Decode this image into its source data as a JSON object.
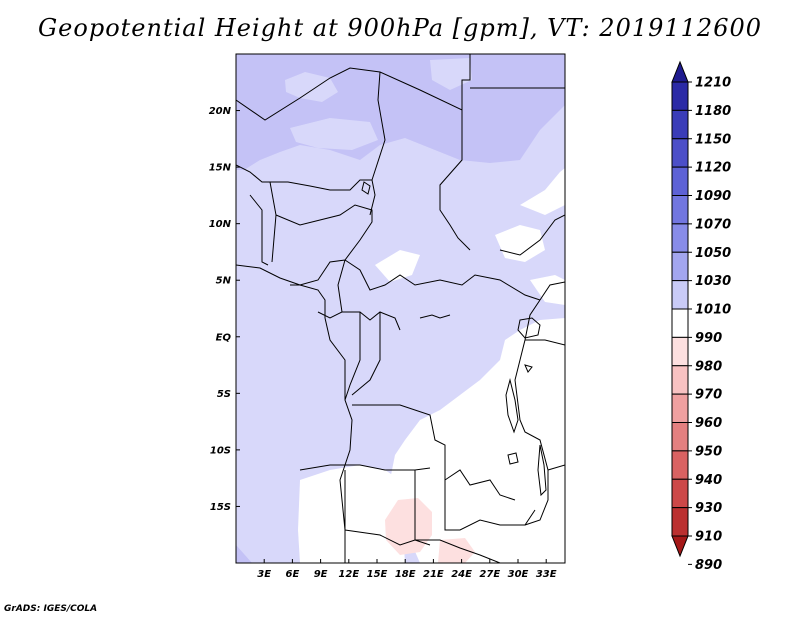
{
  "title": "Geopotential Height at 900hPa [gpm], VT: 2019112600",
  "credit": "GrADS: IGES/COLA",
  "map": {
    "lon_range": [
      0,
      35
    ],
    "lat_range": [
      -20,
      25
    ],
    "x_ticks": [
      {
        "lon": 3,
        "label": "3E"
      },
      {
        "lon": 6,
        "label": "6E"
      },
      {
        "lon": 9,
        "label": "9E"
      },
      {
        "lon": 12,
        "label": "12E"
      },
      {
        "lon": 15,
        "label": "15E"
      },
      {
        "lon": 18,
        "label": "18E"
      },
      {
        "lon": 21,
        "label": "21E"
      },
      {
        "lon": 24,
        "label": "24E"
      },
      {
        "lon": 27,
        "label": "27E"
      },
      {
        "lon": 30,
        "label": "30E"
      },
      {
        "lon": 33,
        "label": "33E"
      }
    ],
    "y_ticks": [
      {
        "lat": 20,
        "label": "20N"
      },
      {
        "lat": 15,
        "label": "15N"
      },
      {
        "lat": 10,
        "label": "10N"
      },
      {
        "lat": 5,
        "label": "5N"
      },
      {
        "lat": 0,
        "label": "EQ"
      },
      {
        "lat": -5,
        "label": "5S"
      },
      {
        "lat": -10,
        "label": "10S"
      },
      {
        "lat": -15,
        "label": "15S"
      }
    ]
  },
  "colorbar": {
    "levels": [
      "1210",
      "1180",
      "1150",
      "1120",
      "1090",
      "1070",
      "1050",
      "1030",
      "1010",
      "990",
      "980",
      "970",
      "960",
      "950",
      "940",
      "930",
      "910",
      "890"
    ],
    "colors": [
      "#1f1b8f",
      "#2b2aa6",
      "#3a3cb8",
      "#4c4fc8",
      "#5e62d6",
      "#7276e0",
      "#888ce8",
      "#a3a6ef",
      "#c9cbf7",
      "#ffffff",
      "#fde0e0",
      "#f8c2c2",
      "#efa0a0",
      "#e48080",
      "#d96262",
      "#cc4848",
      "#bb3030",
      "#a51818"
    ]
  },
  "colors": {
    "field_base": "#d8d8fa",
    "field_high": "#c4c2f6",
    "field_low": "#ffffff",
    "field_lowest": "#fde0e0",
    "border": "#000000"
  }
}
